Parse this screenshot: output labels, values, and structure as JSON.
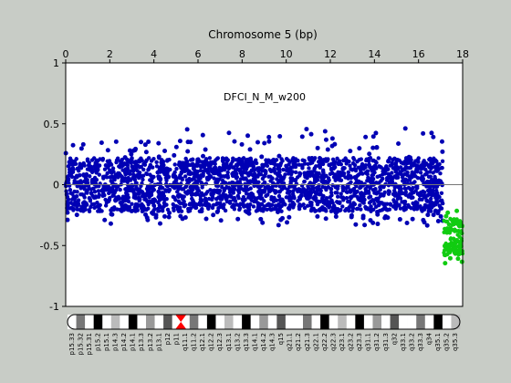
{
  "chart_data": {
    "type": "scatter",
    "title": "Chromosome 5 (bp)",
    "annotation": "DFCI_N_M_w200",
    "xlabel": "Chromosome 5 (bp)",
    "ylabel": "",
    "xlim": [
      0,
      18
    ],
    "ylim": [
      -1,
      1
    ],
    "x_ticks": [
      "0",
      "2",
      "4",
      "6",
      "8",
      "10",
      "12",
      "14",
      "16",
      "18"
    ],
    "x_tick_values": [
      0,
      2,
      4,
      6,
      8,
      10,
      12,
      14,
      16,
      18
    ],
    "y_ticks": [
      "1",
      "0.5",
      "0",
      "-0.5",
      "-1"
    ],
    "y_tick_values": [
      1,
      0.5,
      0,
      -0.5,
      -1
    ],
    "x_axis_position": "top",
    "grid": false,
    "reference_line_y": 0,
    "series": [
      {
        "color": "#0000b4",
        "segments": [
          {
            "x_start": 0.0,
            "x_end": 4.75,
            "center": 0.0,
            "core_low": -0.22,
            "core_high": 0.22,
            "outlier_low": -0.32,
            "outlier_high": 0.38
          },
          {
            "x_start": 4.85,
            "x_end": 17.1,
            "center": 0.0,
            "core_low": -0.22,
            "core_high": 0.22,
            "outlier_low": -0.34,
            "outlier_high": 0.48
          }
        ]
      },
      {
        "color": "#11cc11",
        "segments": [
          {
            "x_start": 17.15,
            "x_end": 18.0,
            "center": -0.42,
            "core_low": -0.58,
            "core_high": -0.28,
            "outlier_low": -0.65,
            "outlier_high": -0.2
          }
        ]
      }
    ]
  },
  "ideogram": {
    "bands": [
      "p15.33",
      "p15.32",
      "p15.31",
      "p15.2",
      "p15.1",
      "p14.3",
      "p14.2",
      "p14.1",
      "p13.3",
      "p13.2",
      "p13.1",
      "p12",
      "p11",
      "q11.1",
      "q11.2",
      "q12.1",
      "q12.2",
      "q12.3",
      "q13.1",
      "q13.2",
      "q13.3",
      "q14.1",
      "q14.2",
      "q14.3",
      "q15",
      "q21.1",
      "q21.2",
      "q21.3",
      "q22.1",
      "q22.2",
      "q22.3",
      "q23.1",
      "q23.2",
      "q23.3",
      "q31.1",
      "q31.2",
      "q31.3",
      "q32",
      "q33.1",
      "q33.2",
      "q33.3",
      "q34",
      "q35.1",
      "q35.2",
      "q35.3"
    ]
  }
}
